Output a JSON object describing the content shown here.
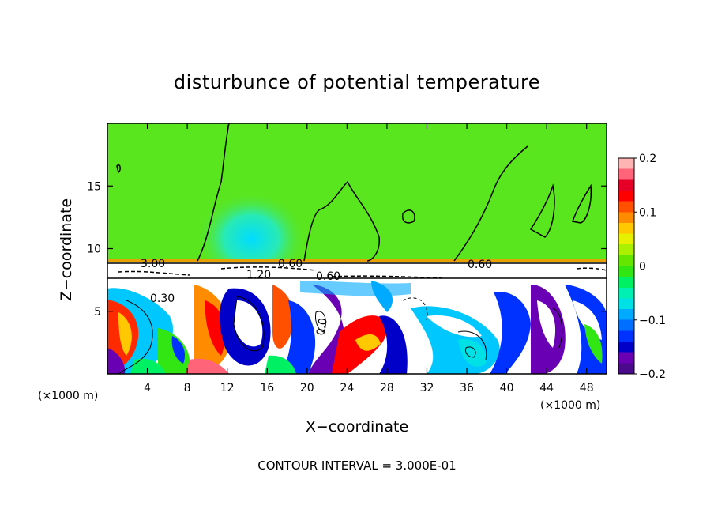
{
  "chart_data": {
    "type": "heatmap",
    "title": "disturbunce of potential temperature",
    "xlabel": "X−coordinate",
    "ylabel": "Z−coordinate",
    "x_unit": "(×1000 m)",
    "x_unit_right": "(×1000 m)",
    "xlim": [
      0,
      50
    ],
    "ylim": [
      0,
      20
    ],
    "x_ticks": [
      4,
      8,
      12,
      16,
      20,
      24,
      28,
      32,
      36,
      40,
      44,
      48
    ],
    "x_tick_labels": [
      "4",
      "8",
      "12",
      "16",
      "20",
      "24",
      "28",
      "32",
      "36",
      "40",
      "44",
      "48"
    ],
    "y_ticks": [
      5,
      10,
      15
    ],
    "y_tick_labels": [
      "5",
      "10",
      "15"
    ],
    "colorbar": {
      "range": [
        -0.2,
        0.2
      ],
      "ticks": [
        0.2,
        0.1,
        0,
        -0.1,
        -0.2
      ],
      "tick_labels": [
        "0.2",
        "0.1",
        "0",
        "−0.1",
        "−0.2"
      ],
      "colors": [
        "#4b0a8c",
        "#6a00b4",
        "#0000c8",
        "#0032ff",
        "#006eff",
        "#00aaff",
        "#00e1e6",
        "#00f0b4",
        "#00f064",
        "#32e614",
        "#64e600",
        "#aaf000",
        "#e6f000",
        "#ffc800",
        "#ff8c00",
        "#ff5000",
        "#ff0000",
        "#e60028",
        "#ff6478",
        "#ffb4b4"
      ]
    },
    "contour_labels": [
      "3.00",
      "0.60",
      "0.60",
      "1.20",
      "0.60",
      "0.30",
      "0.0"
    ],
    "annotation": "CONTOUR INTERVAL = 3.000E-01",
    "colors": {
      "upper_field": "#5ae61e",
      "band": "#ffffff",
      "stripe": "#e6a000"
    }
  }
}
